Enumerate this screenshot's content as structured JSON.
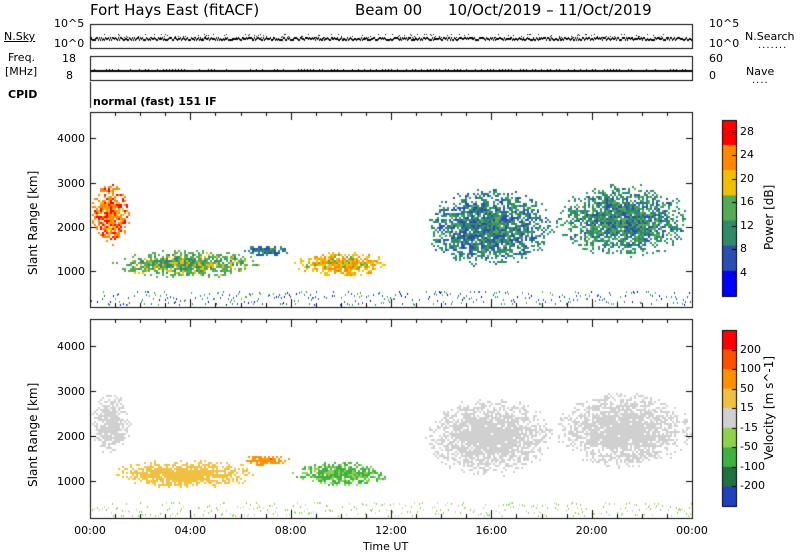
{
  "header": {
    "station": "Fort Hays East (fitACF)",
    "beam": "Beam 00",
    "dates": "10/Oct/2019 – 11/Oct/2019"
  },
  "strip_panels": {
    "nsky_label": "N.Sky",
    "nsearch_label": "N.Search",
    "nsky_ticks": [
      "10^5",
      "10^0"
    ],
    "nsearch_ticks": [
      "10^5",
      "10^0"
    ],
    "freq_label": "Freq.",
    "freq_unit": "[MHz]",
    "freq_ticks": [
      "18",
      "8"
    ],
    "nave_label": "Nave",
    "nave_ticks": [
      "60",
      "0"
    ],
    "cpid_label": "CPID",
    "cpid_text": "normal (fast) 151 IF"
  },
  "chart_data": [
    {
      "type": "heatmap",
      "title": "",
      "xlabel": "Time UT",
      "ylabel": "Slant Range [km]",
      "x_ticks": [
        "00:00",
        "04:00",
        "08:00",
        "12:00",
        "16:00",
        "20:00",
        "00:00"
      ],
      "y_ticks": [
        1000,
        2000,
        3000,
        4000
      ],
      "xlim": [
        0,
        24
      ],
      "ylim": [
        180,
        4600
      ],
      "colorbar": {
        "label": "Power [dB]",
        "ticks": [
          4,
          8,
          12,
          16,
          20,
          24,
          28
        ],
        "range": [
          0,
          30
        ],
        "colors": [
          "#0000ff",
          "#2a4fb0",
          "#2f8a6a",
          "#55aa55",
          "#f0c000",
          "#ff8800",
          "#ff0000"
        ]
      },
      "regions": [
        {
          "t0": 0.0,
          "t1": 1.6,
          "r0": 1600,
          "r1": 3000,
          "value": 24
        },
        {
          "t0": 0.8,
          "t1": 6.8,
          "r0": 850,
          "r1": 1500,
          "value": 15
        },
        {
          "t0": 6.0,
          "t1": 8.0,
          "r0": 1350,
          "r1": 1600,
          "value": 9
        },
        {
          "t0": 8.0,
          "t1": 12.0,
          "r0": 900,
          "r1": 1450,
          "value": 20
        },
        {
          "t0": 13.3,
          "t1": 18.5,
          "r0": 1100,
          "r1": 2900,
          "value": 10
        },
        {
          "t0": 18.5,
          "t1": 24.0,
          "r0": 1300,
          "r1": 3000,
          "value": 11
        }
      ]
    },
    {
      "type": "heatmap",
      "title": "",
      "xlabel": "Time UT",
      "ylabel": "Slant Range [km]",
      "x_ticks": [
        "00:00",
        "04:00",
        "08:00",
        "12:00",
        "16:00",
        "20:00",
        "00:00"
      ],
      "y_ticks": [
        1000,
        2000,
        3000,
        4000
      ],
      "xlim": [
        0,
        24
      ],
      "ylim": [
        180,
        4600
      ],
      "colorbar": {
        "label": "Velocity [m s^-1]",
        "ticks": [
          200,
          100,
          50,
          15,
          -15,
          -50,
          -100,
          -200
        ],
        "range": [
          -250,
          250
        ],
        "colors": [
          "#2040c0",
          "#207040",
          "#40b040",
          "#90d050",
          "#d0d0d0",
          "#f0c040",
          "#ff9000",
          "#ff5000",
          "#ff0000"
        ]
      },
      "regions": [
        {
          "t0": 0.0,
          "t1": 1.6,
          "r0": 1600,
          "r1": 3000,
          "value": 0
        },
        {
          "t0": 0.8,
          "t1": 6.8,
          "r0": 850,
          "r1": 1500,
          "value": 60
        },
        {
          "t0": 6.0,
          "t1": 8.0,
          "r0": 1350,
          "r1": 1600,
          "value": 120
        },
        {
          "t0": 8.0,
          "t1": 12.0,
          "r0": 900,
          "r1": 1450,
          "value": -90
        },
        {
          "t0": 13.3,
          "t1": 18.5,
          "r0": 1100,
          "r1": 2900,
          "value": 0
        },
        {
          "t0": 18.5,
          "t1": 24.0,
          "r0": 1300,
          "r1": 3000,
          "value": 0
        }
      ]
    }
  ]
}
